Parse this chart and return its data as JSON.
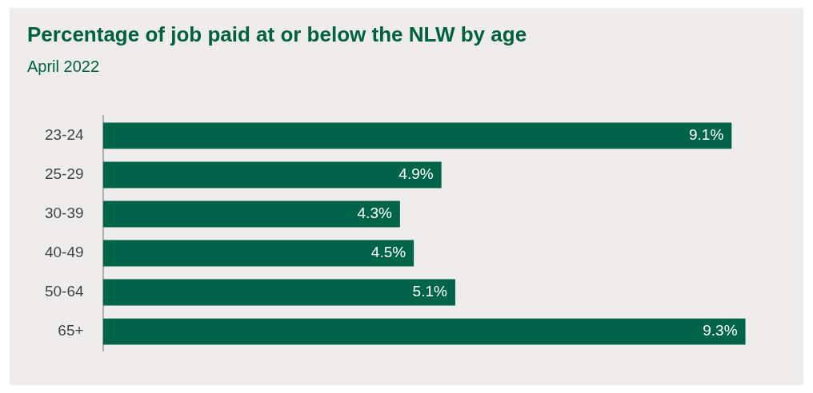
{
  "chart_data": {
    "type": "bar",
    "orientation": "horizontal",
    "title": "Percentage of job paid at or below the NLW by age",
    "subtitle": "April 2022",
    "categories": [
      "23-24",
      "25-29",
      "30-39",
      "40-49",
      "50-64",
      "65+"
    ],
    "values": [
      9.1,
      4.9,
      4.3,
      4.5,
      5.1,
      9.3
    ],
    "value_labels": [
      "9.1%",
      "4.9%",
      "4.3%",
      "4.5%",
      "5.1%",
      "9.3%"
    ],
    "color": "#006548",
    "grid": false,
    "legend": false,
    "tick_labels": "y"
  }
}
